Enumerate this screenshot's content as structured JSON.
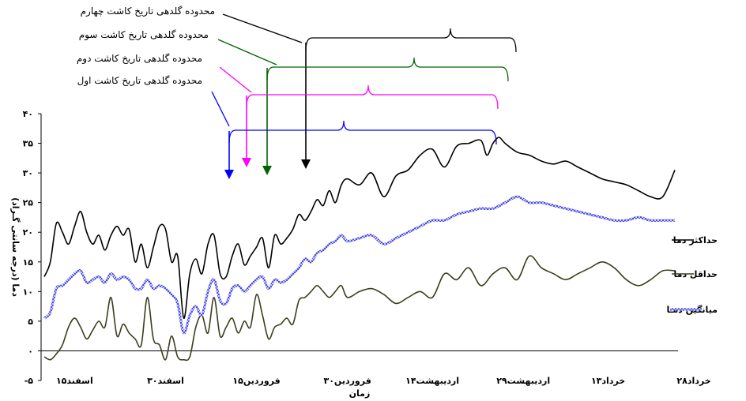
{
  "chart_data": {
    "type": "line",
    "xlabel": "زمان",
    "ylabel": "دما (درجه سانتی گـراد)",
    "ylim": [
      -5,
      40
    ],
    "yticks": [
      -5,
      0,
      5,
      10,
      15,
      20,
      25,
      30,
      35,
      40
    ],
    "ytick_labels": [
      "-۵",
      "۰",
      "۵",
      "۱۰",
      "۱۵",
      "۲۰",
      "۲۵",
      "۳۰",
      "۳۵",
      "۴۰"
    ],
    "xlim": [
      0,
      104
    ],
    "x_ticks": [
      {
        "x": 5,
        "label": "۱۵اسفند"
      },
      {
        "x": 20,
        "label": "۳۰اسفند"
      },
      {
        "x": 35,
        "label": "۱۵فروردین"
      },
      {
        "x": 50,
        "label": "۳۰فروردین"
      },
      {
        "x": 64,
        "label": "۱۴اردیبهشت"
      },
      {
        "x": 79,
        "label": "۲۹اردیبهشت"
      },
      {
        "x": 93,
        "label": "۱۳خرداد"
      },
      {
        "x": 108,
        "label": "۲۸خرداد"
      }
    ],
    "series": [
      {
        "name": "حداکثر دما",
        "color": "#000000",
        "style": "solid",
        "x": [
          0,
          1,
          2,
          3,
          4,
          5,
          6,
          7,
          8,
          9,
          10,
          11,
          12,
          13,
          14,
          15,
          16,
          17,
          18,
          19,
          20,
          21,
          22,
          23,
          24,
          25,
          26,
          27,
          28,
          29,
          30,
          31,
          32,
          33,
          34,
          35,
          36,
          37,
          38,
          39,
          40,
          41,
          42,
          43,
          44,
          45,
          46,
          47,
          48,
          49,
          50,
          52,
          54,
          56,
          58,
          60,
          62,
          64,
          66,
          68,
          70,
          72,
          73,
          74,
          75,
          76,
          78,
          80,
          82,
          84,
          86,
          88,
          90,
          92,
          94,
          96,
          98,
          100,
          102,
          104
        ],
        "values": [
          12.5,
          15,
          21.5,
          20,
          18,
          21,
          23.5,
          20,
          18,
          19.5,
          17,
          19.5,
          21,
          19.5,
          20.5,
          15,
          18,
          14,
          17.5,
          21,
          20.5,
          15,
          16,
          5.5,
          13,
          15.5,
          13,
          18,
          19.5,
          13,
          12.5,
          16,
          18,
          14.5,
          16,
          17.5,
          19,
          14,
          19.5,
          18,
          19,
          20.5,
          23,
          22,
          23.5,
          25.5,
          24.5,
          27,
          25,
          28,
          29,
          28,
          30,
          26,
          29.5,
          30.5,
          33,
          34,
          31,
          34.5,
          35,
          35.5,
          33,
          35,
          36,
          35,
          33.5,
          33,
          32,
          31.5,
          32,
          31,
          30,
          29,
          28.5,
          28,
          27,
          26,
          26,
          30.5
        ]
      },
      {
        "name": "حداقل دما",
        "color": "#3d3d1f",
        "style": "solid",
        "x": [
          0,
          1,
          2,
          3,
          4,
          5,
          6,
          7,
          8,
          9,
          10,
          11,
          12,
          13,
          14,
          15,
          16,
          17,
          18,
          19,
          20,
          21,
          22,
          23,
          24,
          25,
          26,
          27,
          28,
          29,
          30,
          31,
          32,
          33,
          34,
          35,
          36,
          37,
          38,
          39,
          40,
          41,
          42,
          43,
          44,
          45,
          46,
          47,
          48,
          49,
          50,
          52,
          54,
          56,
          58,
          60,
          62,
          64,
          66,
          68,
          70,
          72,
          74,
          76,
          78,
          80,
          82,
          84,
          86,
          88,
          90,
          92,
          94,
          96,
          98,
          100,
          102,
          104
        ],
        "values": [
          -1,
          -1.5,
          -0.5,
          1,
          4,
          5.5,
          4,
          2,
          3.5,
          5,
          4,
          9,
          2.5,
          4.5,
          3,
          2,
          1,
          9,
          2,
          1,
          -1.5,
          2.5,
          -1,
          -1.5,
          -1,
          4,
          6,
          3,
          9,
          2.5,
          4,
          5.5,
          3,
          5,
          4,
          9.5,
          6,
          2,
          4,
          4.5,
          5.5,
          4.5,
          8.5,
          9,
          10,
          11,
          10,
          9,
          10,
          11,
          9,
          10,
          10.5,
          9.5,
          8,
          9,
          10,
          9,
          13,
          12,
          14,
          11,
          13,
          14,
          12,
          16,
          14,
          13,
          12,
          13,
          14,
          15,
          14,
          12,
          11,
          12,
          13.5,
          13.5
        ]
      },
      {
        "name": "میانگین دمـا",
        "color": "#4a4ae6",
        "style": "textured",
        "x": [
          0,
          1,
          2,
          3,
          4,
          5,
          6,
          7,
          8,
          9,
          10,
          11,
          12,
          13,
          14,
          15,
          16,
          17,
          18,
          19,
          20,
          21,
          22,
          23,
          24,
          25,
          26,
          27,
          28,
          29,
          30,
          31,
          32,
          33,
          34,
          35,
          36,
          37,
          38,
          39,
          40,
          41,
          42,
          43,
          44,
          45,
          46,
          47,
          48,
          49,
          50,
          52,
          54,
          56,
          58,
          60,
          62,
          64,
          66,
          68,
          70,
          72,
          74,
          76,
          78,
          80,
          82,
          84,
          86,
          88,
          90,
          92,
          94,
          96,
          98,
          100,
          102,
          104
        ],
        "values": [
          5.5,
          6.5,
          10.5,
          11,
          12,
          13,
          13.5,
          11.5,
          12,
          12.5,
          11.5,
          13,
          12,
          12.5,
          12,
          10.5,
          10.5,
          12,
          10.5,
          11,
          10.5,
          9.5,
          8,
          3,
          6,
          7.5,
          6,
          10,
          12,
          8.5,
          8,
          10.5,
          11,
          10,
          11,
          12,
          12.5,
          10.5,
          12,
          11.5,
          12,
          13,
          14,
          15.5,
          15,
          16.5,
          17,
          18,
          18.5,
          19.5,
          18.5,
          19,
          19.5,
          18,
          19,
          20,
          21,
          22,
          22,
          23,
          23.5,
          24,
          24,
          25,
          26,
          25,
          25,
          24.5,
          24,
          23.5,
          23,
          22.5,
          22,
          22,
          22.5,
          22,
          22,
          22
        ]
      }
    ],
    "annotations": [
      {
        "label": "محدوده گلدهی تاریخ کاشت چهارم",
        "color": "#000000"
      },
      {
        "label": "محدوده گلدهی تاریخ کاشت سوم",
        "color": "#006400"
      },
      {
        "label": "محدوده گلدهی تاریخ کاشت دوم",
        "color": "#ff00ff"
      },
      {
        "label": "محدوده گلدهی تاریخ کاشت اول",
        "color": "#0000ff"
      }
    ]
  }
}
